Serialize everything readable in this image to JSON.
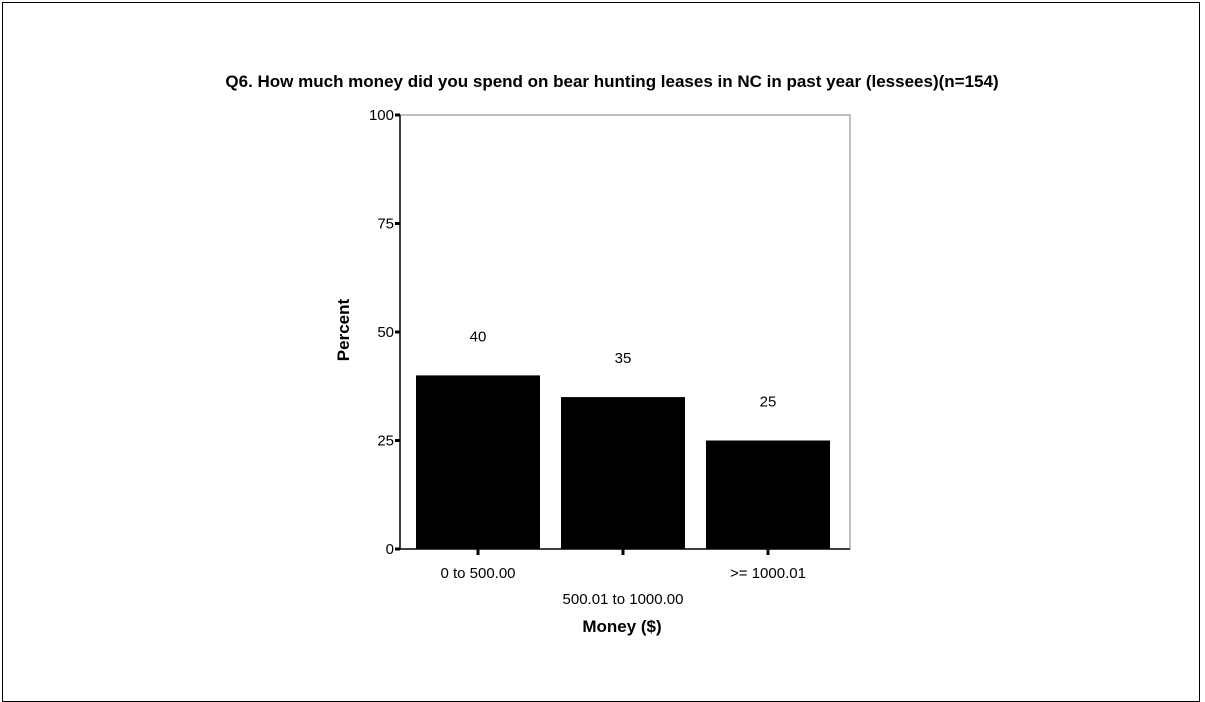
{
  "chart_data": {
    "type": "bar",
    "title": "Q6. How much money did you spend on bear hunting leases in NC in past year (lessees)(n=154)",
    "xlabel": "Money ($)",
    "ylabel": "Percent",
    "categories": [
      "0 to 500.00",
      "500.01 to 1000.00",
      ">= 1000.01"
    ],
    "values": [
      40,
      35,
      25
    ],
    "data_labels": [
      "40",
      "35",
      "25"
    ],
    "ylim": [
      0,
      100
    ],
    "yticks": [
      0,
      25,
      50,
      75,
      100
    ],
    "ytick_labels": [
      "0",
      "25",
      "50",
      "75",
      "100"
    ],
    "grid": false,
    "legend": "none",
    "colors": {
      "bar": "#000000",
      "axis": "#000000",
      "background": "#ffffff"
    }
  }
}
